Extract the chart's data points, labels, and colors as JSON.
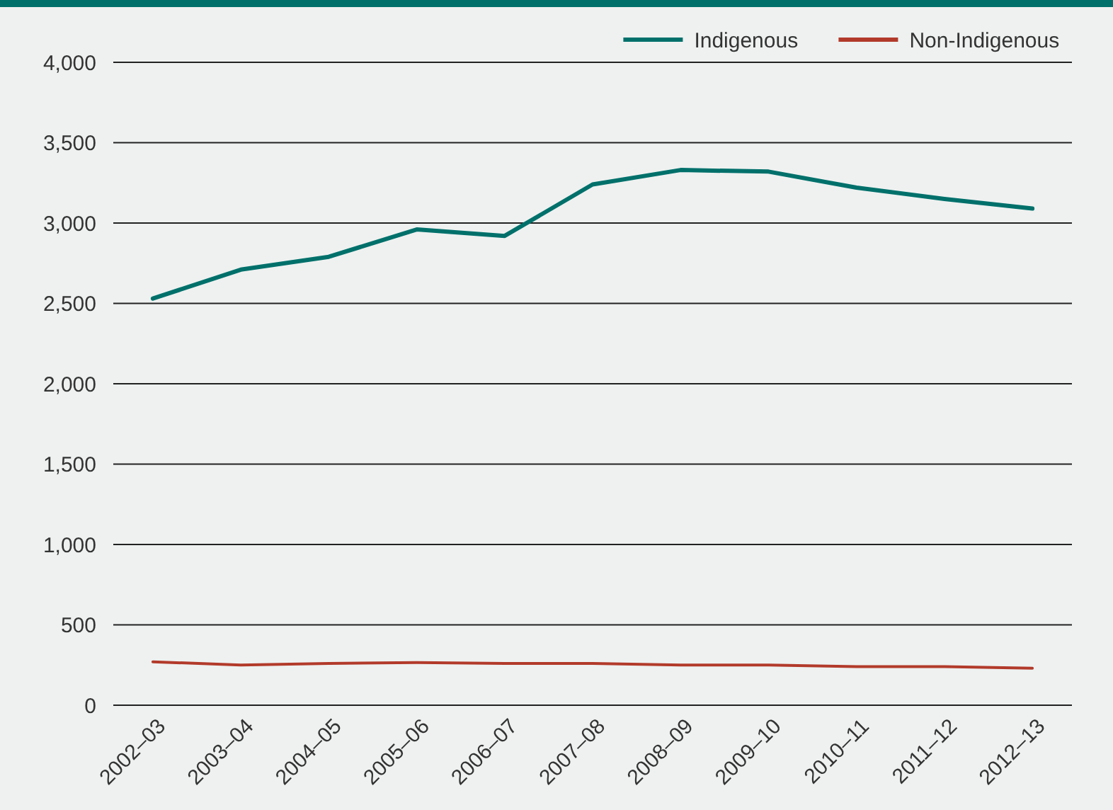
{
  "chart_data": {
    "type": "line",
    "categories": [
      "2002–03",
      "2003–04",
      "2004–05",
      "2005–06",
      "2006–07",
      "2007–08",
      "2008–09",
      "2009–10",
      "2010–11",
      "2011–12",
      "2012–13"
    ],
    "series": [
      {
        "name": "Indigenous",
        "color": "#00706b",
        "values": [
          2530,
          2710,
          2790,
          2960,
          2920,
          3240,
          3330,
          3320,
          3220,
          3150,
          3090
        ]
      },
      {
        "name": "Non-Indigenous",
        "color": "#b23a2a",
        "values": [
          270,
          250,
          260,
          265,
          260,
          260,
          250,
          250,
          240,
          240,
          230
        ]
      }
    ],
    "ylim": [
      0,
      4000
    ],
    "yticks": [
      0,
      500,
      {
        "value": 1000,
        "label": "1,000"
      },
      {
        "value": 1500,
        "label": "1,500"
      },
      {
        "value": 2000,
        "label": "2,000"
      },
      {
        "value": 2500,
        "label": "2,500"
      },
      {
        "value": 3000,
        "label": "3,000"
      },
      {
        "value": 3500,
        "label": "3,500"
      },
      {
        "value": 4000,
        "label": "4,000"
      }
    ],
    "grid": "y",
    "legend": "top right",
    "marker": "none",
    "line_style": "solid"
  }
}
